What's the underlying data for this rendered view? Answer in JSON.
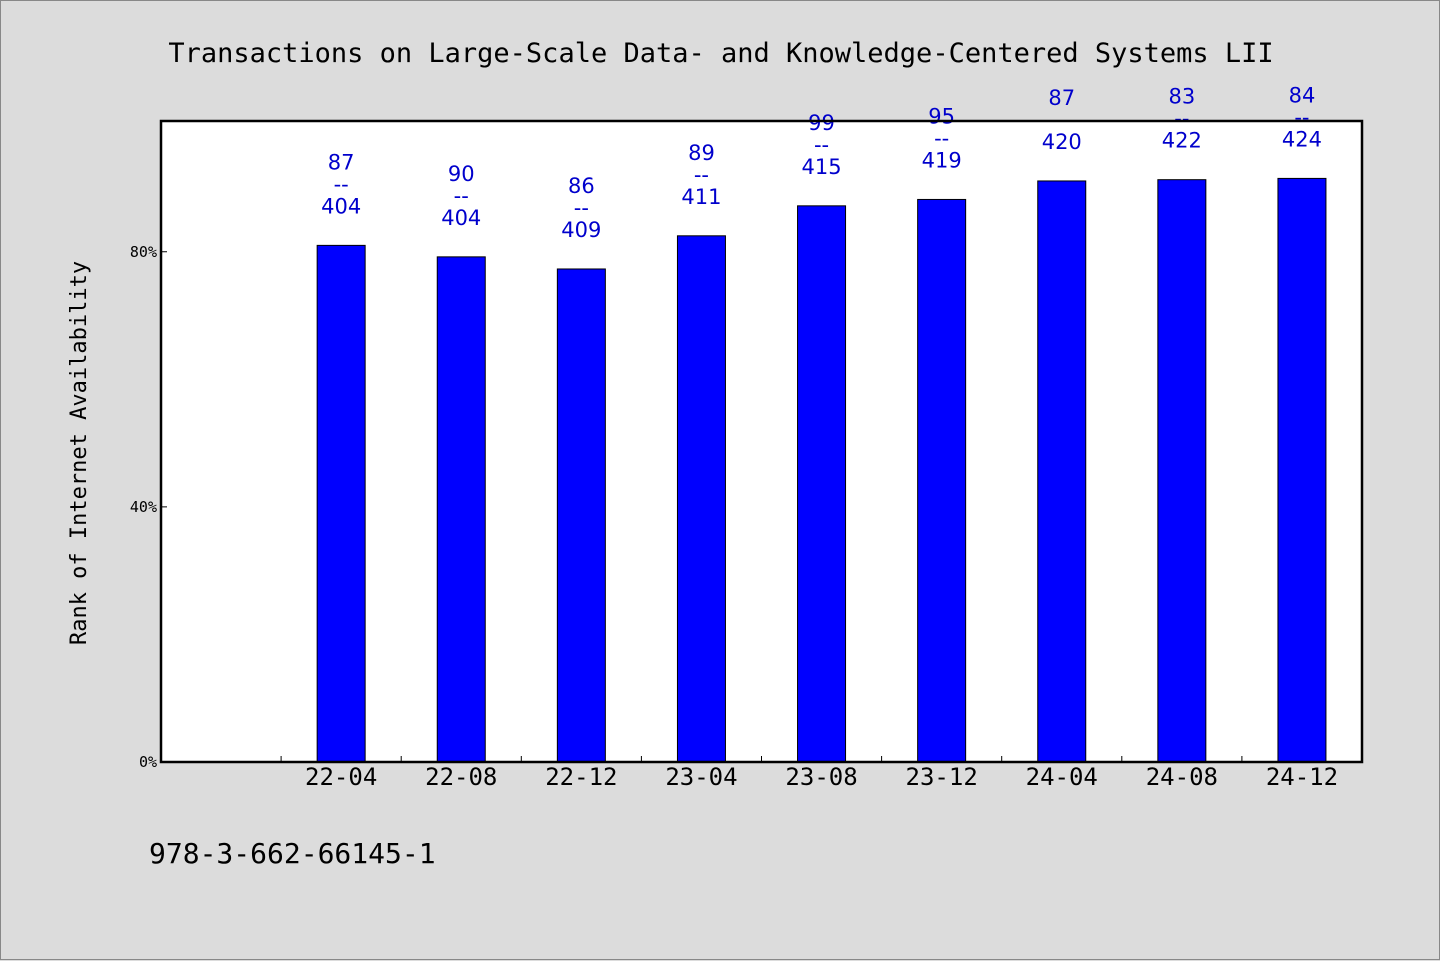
{
  "chart_data": {
    "type": "bar",
    "title": "Transactions on Large-Scale Data- and Knowledge-Centered Systems LII",
    "xlabel": "",
    "ylabel": "Rank of Internet Availability",
    "categories": [
      "",
      "22-04",
      "22-08",
      "22-12",
      "23-04",
      "23-08",
      "23-12",
      "24-04",
      "24-08",
      "24-12"
    ],
    "values": [
      null,
      81,
      79.2,
      77.3,
      82.5,
      87.2,
      88.2,
      91.1,
      91.3,
      91.5
    ],
    "bar_labels": [
      null,
      {
        "top": "87",
        "mid": "--",
        "bottom": "404"
      },
      {
        "top": "90",
        "mid": "--",
        "bottom": "404"
      },
      {
        "top": "86",
        "mid": "--",
        "bottom": "409"
      },
      {
        "top": "89",
        "mid": "--",
        "bottom": "411"
      },
      {
        "top": "99",
        "mid": "--",
        "bottom": "415"
      },
      {
        "top": "95",
        "mid": "--",
        "bottom": "419"
      },
      {
        "top": "87",
        "mid": "--",
        "bottom": "420"
      },
      {
        "top": "83",
        "mid": "--",
        "bottom": "422"
      },
      {
        "top": "84",
        "mid": "--",
        "bottom": "424"
      }
    ],
    "yticks": [
      {
        "value": 0,
        "label": "0%"
      },
      {
        "value": 40,
        "label": "40%"
      },
      {
        "value": 80,
        "label": "80%"
      }
    ],
    "ylim": [
      0,
      100.5
    ],
    "grid": false,
    "legend": "none",
    "colors": {
      "bar": "#0000ff",
      "bar_label": "#0000cc",
      "plot_bg": "#ffffff",
      "page_bg": "#dcdcdc"
    }
  },
  "footer": {
    "isbn": "978-3-662-66145-1"
  }
}
